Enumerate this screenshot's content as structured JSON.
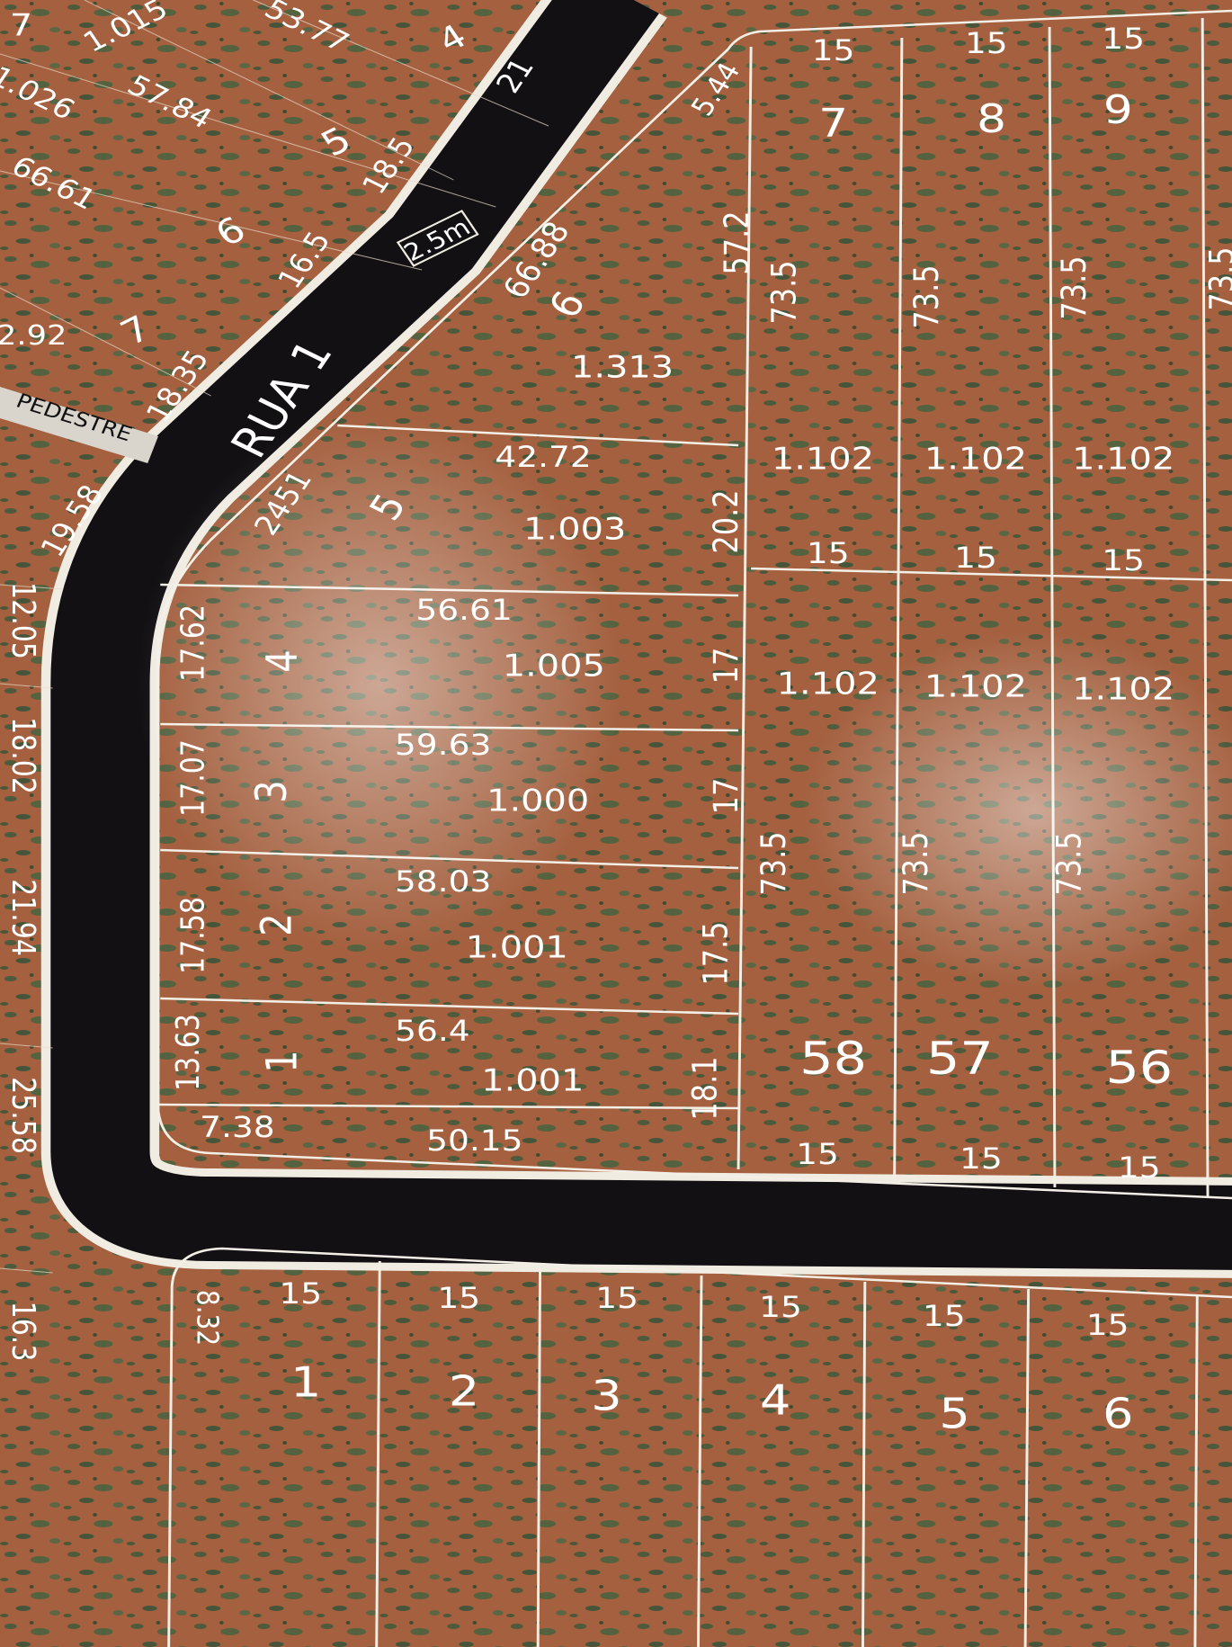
{
  "north_block": [
    "7",
    "1.015",
    "53.77",
    "4",
    "21",
    "1.026",
    "57.84",
    "5",
    "18.5",
    "66.61",
    "6",
    "16.5",
    "2.92",
    "7",
    "18.35",
    "19.58"
  ],
  "pedestrian_path": "PEDESTRE",
  "street": {
    "name": "RUA 1",
    "width": "2.5m"
  },
  "west_edge": [
    "12.05",
    "18.02",
    "21.94",
    "25.58",
    "16.3"
  ],
  "corner_block": {
    "lot_6": [
      "5.44",
      "66.88",
      "6",
      "1.313",
      "57.2"
    ],
    "lot_5": [
      "42.72",
      "2451",
      "5",
      "1.003",
      "20.2"
    ],
    "lot_4": [
      "56.61",
      "17.62",
      "4",
      "1.005",
      "17"
    ],
    "lot_3": [
      "59.63",
      "17.07",
      "3",
      "1.000",
      "17"
    ],
    "lot_2": [
      "58.03",
      "17.58",
      "2",
      "1.001",
      "17.5"
    ],
    "lot_1": [
      "56.4",
      "13.63",
      "1",
      "1.001",
      "18.1",
      "7.38",
      "50.15"
    ]
  },
  "east_lots": {
    "lot_7": [
      "15",
      "7",
      "73.5",
      "1.102",
      "15"
    ],
    "lot_8": [
      "15",
      "8",
      "73.5",
      "1.102",
      "15"
    ],
    "lot_9": [
      "15",
      "9",
      "73.5",
      "1.102",
      "15"
    ],
    "lot_10": [
      "73.5"
    ],
    "lot_58": [
      "1.102",
      "73.5",
      "58",
      "15"
    ],
    "lot_57": [
      "1.102",
      "73.5",
      "57",
      "15"
    ],
    "lot_56": [
      "1.102",
      "73.5",
      "56",
      "15"
    ]
  },
  "south_block": {
    "edge": "8.32",
    "lots": [
      [
        "15",
        "1"
      ],
      [
        "15",
        "2"
      ],
      [
        "15",
        "3"
      ],
      [
        "15",
        "4"
      ],
      [
        "15",
        "5"
      ],
      [
        "15",
        "6"
      ]
    ]
  }
}
